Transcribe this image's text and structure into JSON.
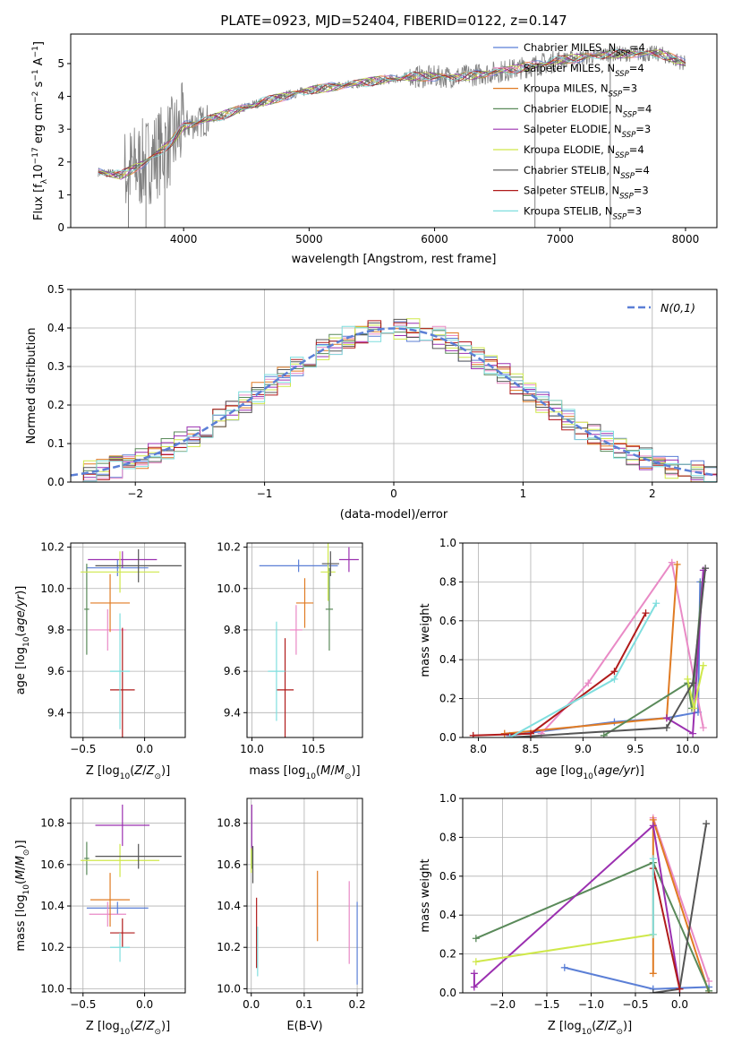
{
  "title": "PLATE=0923, MJD=52404, FIBERID=0122, z=0.147",
  "colors": {
    "Chabrier MILES": "#5b7fd6",
    "Salpeter MILES": "#e98ac6",
    "Kroupa MILES": "#e07b23",
    "Chabrier ELODIE": "#5a8a5a",
    "Salpeter ELODIE": "#9b30b0",
    "Kroupa ELODIE": "#cfe84a",
    "Chabrier STELIB": "#555555",
    "Salpeter STELIB": "#b01b1b",
    "Kroupa STELIB": "#7fdede",
    "data": "#808080",
    "gauss": "#5b7fd6"
  },
  "chart_data": [
    {
      "id": "spectrum",
      "type": "line",
      "xlabel": "wavelength [Angstrom, rest frame]",
      "ylabel": "Flux [f_λ10^-17 erg cm^-2 s^-1 A^-1]",
      "xlim": [
        3100,
        8250
      ],
      "ylim": [
        0,
        5.9
      ],
      "xticks": [
        4000,
        5000,
        6000,
        7000,
        8000
      ],
      "yticks": [
        0,
        1,
        2,
        3,
        4,
        5
      ],
      "legend_position": "top-right",
      "legend": [
        {
          "model": "Chabrier MILES",
          "nssp": "4"
        },
        {
          "model": "Salpeter MILES",
          "nssp": "4"
        },
        {
          "model": "Kroupa MILES",
          "nssp": "3"
        },
        {
          "model": "Chabrier ELODIE",
          "nssp": "4"
        },
        {
          "model": "Salpeter ELODIE",
          "nssp": "3"
        },
        {
          "model": "Kroupa ELODIE",
          "nssp": "4"
        },
        {
          "model": "Chabrier STELIB",
          "nssp": "4"
        },
        {
          "model": "Salpeter STELIB",
          "nssp": "3"
        },
        {
          "model": "Kroupa STELIB",
          "nssp": "3"
        }
      ],
      "continuum": {
        "x": [
          3320,
          3500,
          3700,
          3900,
          4000,
          4300,
          4600,
          5000,
          5400,
          5800,
          6200,
          6600,
          7000,
          7400,
          7800,
          8000
        ],
        "y": [
          1.7,
          1.6,
          2.0,
          2.6,
          3.1,
          3.4,
          3.8,
          4.2,
          4.4,
          4.6,
          4.6,
          4.8,
          5.1,
          5.3,
          5.3,
          5.0
        ]
      }
    },
    {
      "id": "residuals",
      "type": "histogram",
      "xlabel": "(data-model)/error",
      "ylabel": "Normed distribution",
      "xlim": [
        -2.5,
        2.5
      ],
      "ylim": [
        0,
        0.5
      ],
      "xticks": [
        -2,
        -1,
        0,
        1,
        2
      ],
      "yticks": [
        0.0,
        0.1,
        0.2,
        0.3,
        0.4,
        0.5
      ],
      "legend_label": "N(0,1)",
      "legend_position": "top-right",
      "bin_width": 0.1
    },
    {
      "id": "age-vs-Z",
      "type": "errorbar",
      "xlabel": "Z [log10(Z/Z⊙)]",
      "ylabel": "age [log10(age/yr)]",
      "xlim": [
        -0.6,
        0.33
      ],
      "ylim": [
        9.28,
        10.22
      ],
      "xticks": [
        -0.5,
        0.0
      ],
      "yticks": [
        9.4,
        9.6,
        9.8,
        10.0,
        10.2
      ],
      "points": [
        {
          "series": "Chabrier MILES",
          "x": -0.22,
          "xerr": 0.25,
          "y": 10.1,
          "yerr": 0.04
        },
        {
          "series": "Salpeter MILES",
          "x": -0.3,
          "xerr": 0.15,
          "y": 9.8,
          "yerr": 0.1
        },
        {
          "series": "Kroupa MILES",
          "x": -0.28,
          "xerr": 0.16,
          "y": 9.93,
          "yerr": 0.14
        },
        {
          "series": "Chabrier ELODIE",
          "x": -0.47,
          "xerr": 0.02,
          "y": 9.9,
          "yerr": 0.22
        },
        {
          "series": "Salpeter ELODIE",
          "x": -0.18,
          "xerr": 0.28,
          "y": 10.14,
          "yerr": 0.04
        },
        {
          "series": "Kroupa ELODIE",
          "x": -0.2,
          "xerr": 0.32,
          "y": 10.08,
          "yerr": 0.1
        },
        {
          "series": "Chabrier STELIB",
          "x": -0.05,
          "xerr": 0.35,
          "y": 10.11,
          "yerr": 0.08
        },
        {
          "series": "Salpeter STELIB",
          "x": -0.18,
          "xerr": 0.1,
          "y": 9.51,
          "yerr": 0.3
        },
        {
          "series": "Kroupa STELIB",
          "x": -0.2,
          "xerr": 0.08,
          "y": 9.6,
          "yerr": 0.28
        }
      ]
    },
    {
      "id": "age-vs-mass",
      "type": "errorbar",
      "xlabel": "mass [log10(M/M⊙)]",
      "ylabel": "",
      "xlim": [
        9.96,
        10.9
      ],
      "ylim": [
        9.28,
        10.22
      ],
      "xticks": [
        10.0,
        10.5
      ],
      "yticks": [
        9.4,
        9.6,
        9.8,
        10.0,
        10.2
      ],
      "points": [
        {
          "series": "Chabrier MILES",
          "x": 10.38,
          "xerr": 0.32,
          "y": 10.11,
          "yerr": 0.03
        },
        {
          "series": "Salpeter MILES",
          "x": 10.36,
          "xerr": 0.05,
          "y": 9.8,
          "yerr": 0.12
        },
        {
          "series": "Kroupa MILES",
          "x": 10.43,
          "xerr": 0.07,
          "y": 9.93,
          "yerr": 0.12
        },
        {
          "series": "Chabrier ELODIE",
          "x": 10.63,
          "xerr": 0.03,
          "y": 9.9,
          "yerr": 0.2
        },
        {
          "series": "Salpeter ELODIE",
          "x": 10.79,
          "xerr": 0.08,
          "y": 10.14,
          "yerr": 0.06
        },
        {
          "series": "Kroupa ELODIE",
          "x": 10.62,
          "xerr": 0.06,
          "y": 10.08,
          "yerr": 0.14
        },
        {
          "series": "Chabrier STELIB",
          "x": 10.64,
          "xerr": 0.07,
          "y": 10.12,
          "yerr": 0.06
        },
        {
          "series": "Salpeter STELIB",
          "x": 10.27,
          "xerr": 0.07,
          "y": 9.51,
          "yerr": 0.25
        },
        {
          "series": "Kroupa STELIB",
          "x": 10.2,
          "xerr": 0.07,
          "y": 9.6,
          "yerr": 0.24
        }
      ]
    },
    {
      "id": "weight-vs-age",
      "type": "line",
      "xlabel": "age [log10(age/yr)]",
      "ylabel": "mass weight",
      "xlim": [
        7.85,
        10.28
      ],
      "ylim": [
        0,
        1.0
      ],
      "xticks": [
        8.0,
        8.5,
        9.0,
        9.5,
        10.0
      ],
      "yticks": [
        0.0,
        0.2,
        0.4,
        0.6,
        0.8,
        1.0
      ],
      "series": [
        {
          "name": "Chabrier MILES",
          "x": [
            8.3,
            9.3,
            9.8,
            10.1,
            10.12
          ],
          "y": [
            0.01,
            0.08,
            0.1,
            0.13,
            0.8
          ]
        },
        {
          "name": "Salpeter MILES",
          "x": [
            8.6,
            9.05,
            9.85,
            10.15
          ],
          "y": [
            0.02,
            0.28,
            0.9,
            0.05
          ]
        },
        {
          "name": "Kroupa MILES",
          "x": [
            8.25,
            9.8,
            9.9
          ],
          "y": [
            0.02,
            0.1,
            0.89
          ]
        },
        {
          "name": "Chabrier ELODIE",
          "x": [
            9.2,
            10.0,
            10.04,
            10.14
          ],
          "y": [
            0.01,
            0.28,
            0.15,
            0.8
          ]
        },
        {
          "name": "Salpeter ELODIE",
          "x": [
            9.8,
            10.05,
            10.15
          ],
          "y": [
            0.1,
            0.02,
            0.86
          ]
        },
        {
          "name": "Kroupa ELODIE",
          "x": [
            10.0,
            10.06,
            10.15
          ],
          "y": [
            0.3,
            0.15,
            0.37
          ]
        },
        {
          "name": "Chabrier STELIB",
          "x": [
            8.3,
            9.8,
            10.05,
            10.17
          ],
          "y": [
            0.0,
            0.05,
            0.28,
            0.87
          ]
        },
        {
          "name": "Salpeter STELIB",
          "x": [
            7.95,
            8.5,
            9.3,
            9.6
          ],
          "y": [
            0.01,
            0.02,
            0.34,
            0.64
          ]
        },
        {
          "name": "Kroupa STELIB",
          "x": [
            8.3,
            9.3,
            9.7
          ],
          "y": [
            0.0,
            0.3,
            0.69
          ]
        }
      ]
    },
    {
      "id": "mass-vs-Z",
      "type": "errorbar",
      "xlabel": "Z [log10(Z/Z⊙)]",
      "ylabel": "mass [log10(M/M⊙)]",
      "xlim": [
        -0.6,
        0.33
      ],
      "ylim": [
        9.98,
        10.92
      ],
      "xticks": [
        -0.5,
        0.0
      ],
      "yticks": [
        10.0,
        10.2,
        10.4,
        10.6,
        10.8
      ],
      "points": [
        {
          "series": "Chabrier MILES",
          "x": -0.22,
          "xerr": 0.25,
          "y": 10.39,
          "yerr": 0.03
        },
        {
          "series": "Salpeter MILES",
          "x": -0.3,
          "xerr": 0.15,
          "y": 10.36,
          "yerr": 0.06
        },
        {
          "series": "Kroupa MILES",
          "x": -0.28,
          "xerr": 0.16,
          "y": 10.43,
          "yerr": 0.13
        },
        {
          "series": "Chabrier ELODIE",
          "x": -0.47,
          "xerr": 0.02,
          "y": 10.63,
          "yerr": 0.08
        },
        {
          "series": "Salpeter ELODIE",
          "x": -0.18,
          "xerr": 0.22,
          "y": 10.79,
          "yerr": 0.1
        },
        {
          "series": "Kroupa ELODIE",
          "x": -0.2,
          "xerr": 0.32,
          "y": 10.62,
          "yerr": 0.08
        },
        {
          "series": "Chabrier STELIB",
          "x": -0.05,
          "xerr": 0.35,
          "y": 10.64,
          "yerr": 0.06
        },
        {
          "series": "Salpeter STELIB",
          "x": -0.18,
          "xerr": 0.1,
          "y": 10.27,
          "yerr": 0.07
        },
        {
          "series": "Kroupa STELIB",
          "x": -0.2,
          "xerr": 0.08,
          "y": 10.2,
          "yerr": 0.07
        }
      ]
    },
    {
      "id": "mass-vs-EBV",
      "type": "errorbar",
      "xlabel": "E(B-V)",
      "ylabel": "",
      "xlim": [
        -0.008,
        0.21
      ],
      "ylim": [
        9.98,
        10.92
      ],
      "xticks": [
        0.0,
        0.1,
        0.2
      ],
      "yticks": [
        10.0,
        10.2,
        10.4,
        10.6,
        10.8
      ],
      "points": [
        {
          "series": "Chabrier MILES",
          "x": 0.2,
          "xerr": 0.0,
          "y": 10.22,
          "yerr": 0.2
        },
        {
          "series": "Salpeter MILES",
          "x": 0.185,
          "xerr": 0.0,
          "y": 10.32,
          "yerr": 0.2
        },
        {
          "series": "Kroupa MILES",
          "x": 0.125,
          "xerr": 0.0,
          "y": 10.4,
          "yerr": 0.17
        },
        {
          "series": "Chabrier ELODIE",
          "x": 0.002,
          "xerr": 0.0,
          "y": 10.63,
          "yerr": 0.05
        },
        {
          "series": "Salpeter ELODIE",
          "x": 0.001,
          "xerr": 0.0,
          "y": 10.78,
          "yerr": 0.11
        },
        {
          "series": "Kroupa ELODIE",
          "x": 0.0,
          "xerr": 0.0,
          "y": 10.62,
          "yerr": 0.06
        },
        {
          "series": "Chabrier STELIB",
          "x": 0.003,
          "xerr": 0.0,
          "y": 10.6,
          "yerr": 0.09
        },
        {
          "series": "Salpeter STELIB",
          "x": 0.01,
          "xerr": 0.0,
          "y": 10.27,
          "yerr": 0.17
        },
        {
          "series": "Kroupa STELIB",
          "x": 0.012,
          "xerr": 0.0,
          "y": 10.18,
          "yerr": 0.12
        }
      ]
    },
    {
      "id": "weight-vs-Z",
      "type": "line",
      "xlabel": "Z [log10(Z/Z⊙)]",
      "ylabel": "mass weight",
      "xlim": [
        -2.45,
        0.42
      ],
      "ylim": [
        0,
        1.0
      ],
      "xticks": [
        -2.0,
        -1.5,
        -1.0,
        -0.5,
        0.0
      ],
      "yticks": [
        0.0,
        0.2,
        0.4,
        0.6,
        0.8,
        1.0
      ],
      "series": [
        {
          "name": "Chabrier MILES",
          "x": [
            -1.3,
            -0.3,
            0.33
          ],
          "y": [
            0.13,
            0.02,
            0.03
          ]
        },
        {
          "name": "Salpeter MILES",
          "x": [
            -0.3,
            0.33
          ],
          "y": [
            0.9,
            0.06
          ]
        },
        {
          "name": "Kroupa MILES",
          "x": [
            -0.3,
            -0.3,
            0.33
          ],
          "y": [
            0.1,
            0.89,
            0.0
          ]
        },
        {
          "name": "Chabrier ELODIE",
          "x": [
            -2.3,
            -0.3,
            0.33
          ],
          "y": [
            0.28,
            0.67,
            0.01
          ]
        },
        {
          "name": "Salpeter ELODIE",
          "x": [
            -2.32,
            -2.32,
            -0.3,
            0.0
          ],
          "y": [
            0.1,
            0.03,
            0.86,
            0.02
          ]
        },
        {
          "name": "Kroupa ELODIE",
          "x": [
            -2.3,
            -0.3
          ],
          "y": [
            0.16,
            0.3
          ]
        },
        {
          "name": "Chabrier STELIB",
          "x": [
            -0.3,
            0.0,
            0.3
          ],
          "y": [
            0.0,
            0.02,
            0.87
          ]
        },
        {
          "name": "Salpeter STELIB",
          "x": [
            -0.3,
            0.0
          ],
          "y": [
            0.64,
            0.02
          ]
        },
        {
          "name": "Kroupa STELIB",
          "x": [
            -0.3,
            -0.3
          ],
          "y": [
            0.3,
            0.69
          ]
        }
      ]
    }
  ]
}
